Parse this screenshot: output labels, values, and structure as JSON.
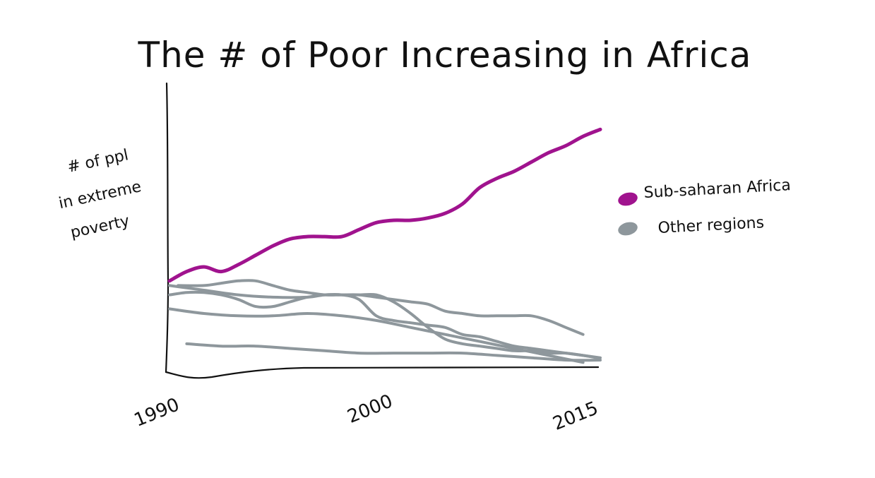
{
  "chart_data": {
    "type": "line",
    "title": "The # of Poor Increasing in Africa",
    "ylabel_lines": [
      "# of ppl",
      "in extreme",
      "poverty"
    ],
    "x_ticks": [
      "1990",
      "2000",
      "2015"
    ],
    "xlim": [
      1990,
      2015
    ],
    "ylim": [
      0,
      100
    ],
    "grid": false,
    "legend_position": "right",
    "colors": {
      "africa": "#A0138E",
      "other": "#8E979C",
      "axis": "#111111"
    },
    "legend": [
      {
        "label": "Sub-saharan Africa",
        "color": "#A0138E"
      },
      {
        "label": "Other regions",
        "color": "#8E979C"
      }
    ],
    "series": [
      {
        "name": "Sub-saharan Africa",
        "color": "#A0138E",
        "x": [
          1990,
          1991,
          1992,
          1993,
          1994,
          1995,
          1996,
          1997,
          1998,
          1999,
          2000,
          2001,
          2002,
          2003,
          2004,
          2005,
          2006,
          2007,
          2008,
          2009,
          2010,
          2011,
          2012,
          2013,
          2014,
          2015
        ],
        "y": [
          34,
          38,
          40,
          38,
          41,
          45,
          49,
          52,
          53,
          53,
          53,
          56,
          59,
          60,
          60,
          61,
          63,
          67,
          74,
          78,
          81,
          85,
          89,
          92,
          96,
          99
        ]
      },
      {
        "group": "other",
        "color": "#8E979C",
        "x": [
          1990.5,
          1992,
          1993,
          1994,
          1995,
          1996,
          1997,
          1998,
          1999,
          2000,
          2001,
          2002,
          2003,
          2004,
          2005,
          2006,
          2007,
          2008,
          2009,
          2010,
          2011,
          2012,
          2013,
          2014,
          2014.8
        ],
        "y": [
          32,
          32,
          33,
          34,
          34,
          32,
          30,
          29,
          28,
          28,
          28,
          28,
          25,
          20,
          14,
          9,
          7,
          6,
          5,
          4,
          4,
          3,
          3,
          2,
          1
        ]
      },
      {
        "group": "other",
        "color": "#8E979C",
        "x": [
          1990,
          1991,
          1992,
          1993,
          1994,
          1995,
          1996,
          1997,
          1998,
          1999,
          2000,
          2001,
          2002,
          2003,
          2004,
          2005,
          2006,
          2007,
          2008,
          2009,
          2010,
          2011,
          2012,
          2013,
          2014
        ],
        "y": [
          28,
          29,
          29,
          28,
          26,
          23,
          23,
          25,
          27,
          28,
          28,
          28,
          27,
          26,
          25,
          24,
          21,
          20,
          19,
          19,
          19,
          19,
          17,
          14,
          11
        ]
      },
      {
        "group": "other",
        "color": "#8E979C",
        "x": [
          1990,
          1992,
          1994,
          1996,
          1998,
          1999,
          2000,
          2001,
          2002,
          2003,
          2004,
          2005,
          2006,
          2007,
          2008,
          2009,
          2010,
          2011,
          2012,
          2013,
          2014,
          2015
        ],
        "y": [
          32,
          30,
          28,
          27,
          27,
          28,
          28,
          26,
          19,
          17,
          16,
          15,
          14,
          11,
          10,
          8,
          6,
          5,
          4,
          3,
          2,
          1
        ]
      },
      {
        "group": "other",
        "color": "#8E979C",
        "x": [
          1990,
          1992,
          1994,
          1996,
          1998,
          2000,
          2002,
          2004,
          2006,
          2008,
          2010,
          2012,
          2014
        ],
        "y": [
          22,
          20,
          19,
          19,
          20,
          19,
          17,
          14,
          11,
          8,
          5,
          2,
          -1
        ]
      },
      {
        "group": "other",
        "color": "#8E979C",
        "x": [
          1991,
          1993,
          1995,
          1997,
          1999,
          2001,
          2003,
          2005,
          2007,
          2009,
          2011,
          2013,
          2015
        ],
        "y": [
          7,
          6,
          6,
          5,
          4,
          3,
          3,
          3,
          3,
          2,
          1,
          0,
          0
        ]
      }
    ]
  }
}
